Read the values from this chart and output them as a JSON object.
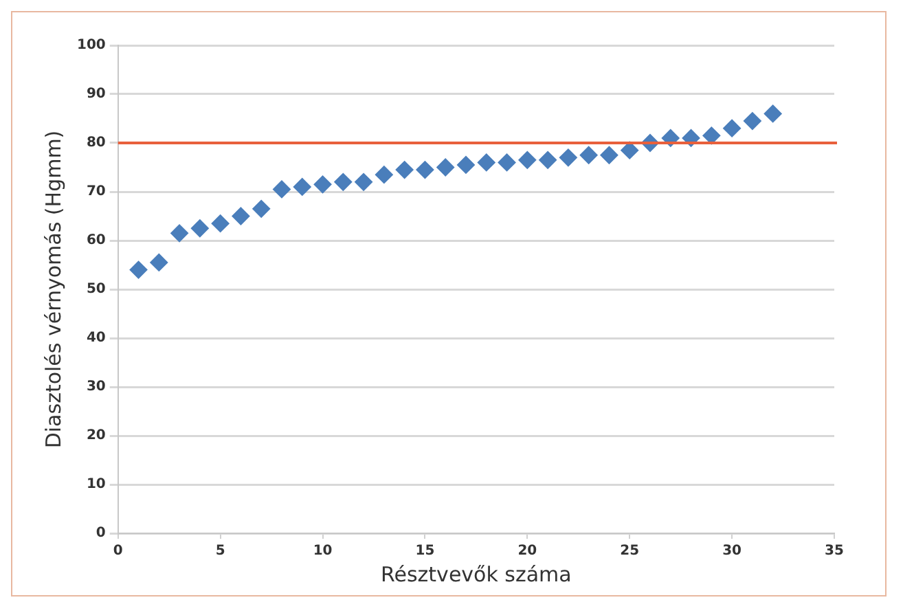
{
  "chart_data": {
    "type": "scatter",
    "xlabel": "Résztvevők száma",
    "ylabel": "Diasztolés vérnyomás (Hgmm)",
    "x": [
      1,
      2,
      3,
      4,
      5,
      6,
      7,
      8,
      9,
      10,
      11,
      12,
      13,
      14,
      15,
      16,
      17,
      18,
      19,
      20,
      21,
      22,
      23,
      24,
      25,
      26,
      27,
      28,
      29,
      30,
      31,
      32
    ],
    "series": [
      {
        "color": "#4a7ebb",
        "values": [
          54,
          55.5,
          61.5,
          62.5,
          63.5,
          65,
          66.5,
          70.5,
          71,
          71.5,
          72,
          72,
          73.5,
          74.5,
          74.5,
          75,
          75.5,
          76,
          76,
          76.5,
          76.5,
          77,
          77.5,
          77.5,
          78.5,
          80,
          81,
          81,
          81.5,
          83,
          84.5,
          86
        ]
      }
    ],
    "xlim": [
      0,
      35
    ],
    "xticks": [
      0,
      5,
      10,
      15,
      20,
      25,
      30,
      35
    ],
    "ylim": [
      0,
      100
    ],
    "yticks": [
      0,
      10,
      20,
      30,
      40,
      50,
      60,
      70,
      80,
      90,
      100
    ],
    "ref_lines": [
      {
        "axis": "y",
        "value": 80,
        "color": "#e8603c",
        "line_style": "solid"
      }
    ],
    "grid": "y",
    "legend": false,
    "marker": "diamond"
  }
}
